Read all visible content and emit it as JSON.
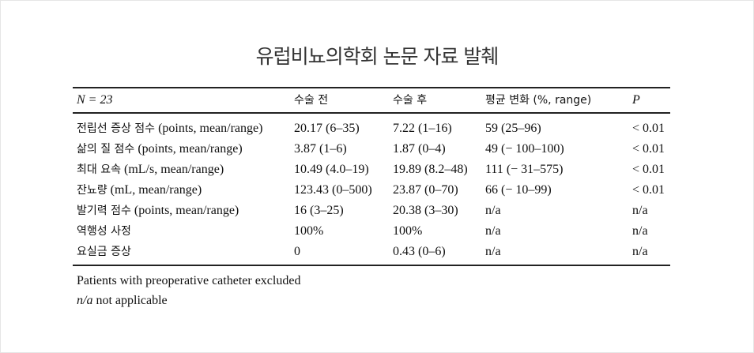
{
  "title": "유럽비뇨의학회 논문 자료 발췌",
  "table": {
    "headers": [
      "N = 23",
      "수술 전",
      "수술 후",
      "평균 변화 (%, range)",
      "P"
    ],
    "rows": [
      {
        "label_ko": "전립선 증상 점수",
        "label_en": " (points, mean/range)",
        "cells": [
          "20.17 (6–35)",
          "7.22 (1–16)",
          "59 (25–96)",
          "< 0.01"
        ]
      },
      {
        "label_ko": "삶의 질 점수",
        "label_en": " (points, mean/range)",
        "cells": [
          "3.87 (1–6)",
          "1.87 (0–4)",
          "49 (− 100–100)",
          "< 0.01"
        ]
      },
      {
        "label_ko": "최대 요속",
        "label_en": " (mL/s, mean/range)",
        "cells": [
          "10.49 (4.0–19)",
          "19.89 (8.2–48)",
          "111 (− 31–575)",
          "< 0.01"
        ]
      },
      {
        "label_ko": "잔뇨량",
        "label_en": " (mL, mean/range)",
        "cells": [
          "123.43 (0–500)",
          "23.87 (0–70)",
          "66 (− 10–99)",
          "< 0.01"
        ]
      },
      {
        "label_ko": "발기력 점수",
        "label_en": " (points, mean/range)",
        "cells": [
          "16 (3–25)",
          "20.38 (3–30)",
          "n/a",
          "n/a"
        ]
      },
      {
        "label_ko": "역행성 사정",
        "label_en": "",
        "cells": [
          "100%",
          "100%",
          "n/a",
          "n/a"
        ]
      },
      {
        "label_ko": "요실금 증상",
        "label_en": "",
        "cells": [
          "0",
          "0.43 (0–6)",
          "n/a",
          "n/a"
        ]
      }
    ]
  },
  "footnotes": {
    "line1": "Patients with preoperative catheter excluded",
    "na_abbr": "n/a",
    "na_text": " not applicable"
  }
}
